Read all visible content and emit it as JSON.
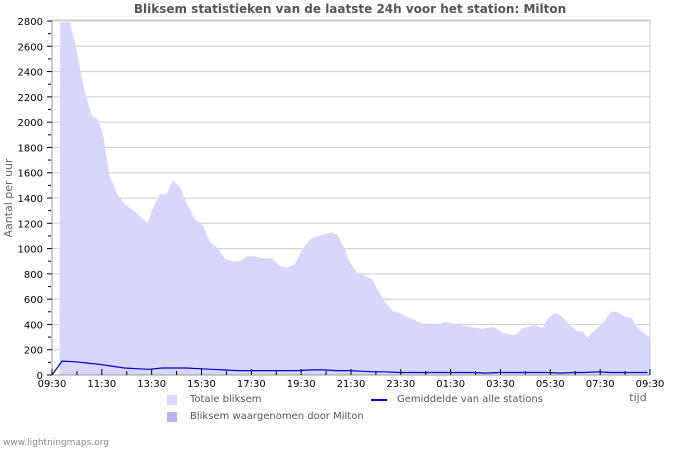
{
  "title": "Bliksem statistieken van de laatste 24h voor het station: Milton",
  "footer": "www.lightningmaps.org",
  "colors": {
    "total_fill": "#d7d7fb",
    "station_fill": "#b4b4f5",
    "average_line": "#0000cc",
    "grid": "#cccccc",
    "axis": "#999999"
  },
  "legend": {
    "total": "Totale bliksem",
    "station": "Bliksem waargenomen door Milton",
    "average": "Gemiddelde van alle stations"
  },
  "chart_data": {
    "type": "area",
    "title": "Bliksem statistieken van de laatste 24h voor het station: Milton",
    "xlabel": "tijd",
    "ylabel": "Aantal per uur",
    "ylim": [
      0,
      2800
    ],
    "yticks": [
      0,
      200,
      400,
      600,
      800,
      1000,
      1200,
      1400,
      1600,
      1800,
      2000,
      2200,
      2400,
      2600,
      2800
    ],
    "xticks": [
      "09:30",
      "11:30",
      "13:30",
      "15:30",
      "17:30",
      "19:30",
      "21:30",
      "23:30",
      "01:30",
      "03:30",
      "05:30",
      "07:30",
      "09:30"
    ],
    "grid": true,
    "legend_position": "bottom",
    "x": [
      "09:30",
      "10:00",
      "10:30",
      "11:00",
      "11:30",
      "12:00",
      "12:30",
      "13:00",
      "13:30",
      "14:00",
      "14:30",
      "15:00",
      "15:30",
      "16:00",
      "16:30",
      "17:00",
      "17:30",
      "18:00",
      "18:30",
      "19:00",
      "19:30",
      "20:00",
      "20:30",
      "21:00",
      "21:30",
      "22:00",
      "22:30",
      "23:00",
      "23:30",
      "00:00",
      "00:30",
      "01:00",
      "01:30",
      "02:00",
      "02:30",
      "03:00",
      "03:30",
      "04:00",
      "04:30",
      "05:00",
      "05:30",
      "06:00",
      "06:30",
      "07:00",
      "07:30",
      "08:00",
      "08:30",
      "09:00",
      "09:30"
    ],
    "series": [
      {
        "name": "Totale bliksem",
        "values": [
          0,
          2790,
          2600,
          2250,
          2030,
          1600,
          1380,
          1300,
          1230,
          1430,
          1530,
          1250,
          1130,
          960,
          900,
          940,
          930,
          920,
          860,
          960,
          1090,
          1120,
          1110,
          890,
          790,
          750,
          590,
          490,
          450,
          410,
          405,
          420,
          400,
          380,
          370,
          320,
          370,
          380,
          470,
          450,
          350,
          310,
          390,
          470,
          500,
          460,
          380,
          330,
          300
        ]
      },
      {
        "name": "Bliksem waargenomen door Milton",
        "values": []
      },
      {
        "name": "Gemiddelde van alle stations",
        "values": [
          0,
          110,
          105,
          95,
          85,
          70,
          55,
          50,
          45,
          55,
          55,
          55,
          50,
          45,
          40,
          35,
          35,
          35,
          35,
          35,
          35,
          40,
          40,
          35,
          35,
          30,
          25,
          25,
          20,
          20,
          20,
          20,
          20,
          20,
          20,
          15,
          20,
          20,
          20,
          20,
          20,
          15,
          20,
          20,
          25,
          20,
          20,
          20,
          20
        ]
      }
    ]
  },
  "plot_points": [
    [
      0,
      0
    ],
    [
      0.3,
      0
    ],
    [
      0.33,
      2790
    ],
    [
      0.7,
      2790
    ],
    [
      0.9,
      2650
    ],
    [
      1.1,
      2450
    ],
    [
      1.3,
      2250
    ],
    [
      1.6,
      2050
    ],
    [
      1.85,
      2020
    ],
    [
      2.05,
      1900
    ],
    [
      2.3,
      1580
    ],
    [
      2.65,
      1420
    ],
    [
      2.93,
      1350
    ],
    [
      3.33,
      1290
    ],
    [
      3.6,
      1240
    ],
    [
      3.85,
      1200
    ],
    [
      4.0,
      1300
    ],
    [
      4.33,
      1430
    ],
    [
      4.6,
      1430
    ],
    [
      4.85,
      1540
    ],
    [
      5.13,
      1490
    ],
    [
      5.42,
      1350
    ],
    [
      5.74,
      1230
    ],
    [
      6.06,
      1180
    ],
    [
      6.34,
      1050
    ],
    [
      6.66,
      1000
    ],
    [
      6.94,
      920
    ],
    [
      7.26,
      895
    ],
    [
      7.54,
      900
    ],
    [
      7.86,
      940
    ],
    [
      8.15,
      940
    ],
    [
      8.43,
      925
    ],
    [
      8.83,
      925
    ],
    [
      9.15,
      860
    ],
    [
      9.47,
      850
    ],
    [
      9.75,
      875
    ],
    [
      10.03,
      990
    ],
    [
      10.35,
      1070
    ],
    [
      10.67,
      1100
    ],
    [
      10.99,
      1115
    ],
    [
      11.23,
      1130
    ],
    [
      11.47,
      1105
    ],
    [
      11.76,
      990
    ],
    [
      11.96,
      890
    ],
    [
      12.24,
      810
    ],
    [
      12.48,
      790
    ],
    [
      12.84,
      760
    ],
    [
      13.08,
      670
    ],
    [
      13.36,
      580
    ],
    [
      13.68,
      505
    ],
    [
      13.96,
      490
    ],
    [
      14.24,
      460
    ],
    [
      14.56,
      435
    ],
    [
      14.96,
      395
    ],
    [
      15.57,
      405
    ],
    [
      15.77,
      420
    ],
    [
      16.17,
      405
    ],
    [
      16.77,
      380
    ],
    [
      17.25,
      365
    ],
    [
      17.74,
      380
    ],
    [
      18.1,
      330
    ],
    [
      18.58,
      315
    ],
    [
      18.9,
      370
    ],
    [
      19.38,
      395
    ],
    [
      19.7,
      370
    ],
    [
      19.9,
      450
    ],
    [
      20.18,
      490
    ],
    [
      20.46,
      465
    ],
    [
      20.78,
      395
    ],
    [
      21.07,
      345
    ],
    [
      21.31,
      345
    ],
    [
      21.47,
      295
    ],
    [
      21.79,
      355
    ],
    [
      22.11,
      410
    ],
    [
      22.43,
      500
    ],
    [
      22.67,
      500
    ],
    [
      22.99,
      460
    ],
    [
      23.27,
      450
    ],
    [
      23.51,
      370
    ],
    [
      23.87,
      315
    ],
    [
      24.0,
      300
    ]
  ]
}
